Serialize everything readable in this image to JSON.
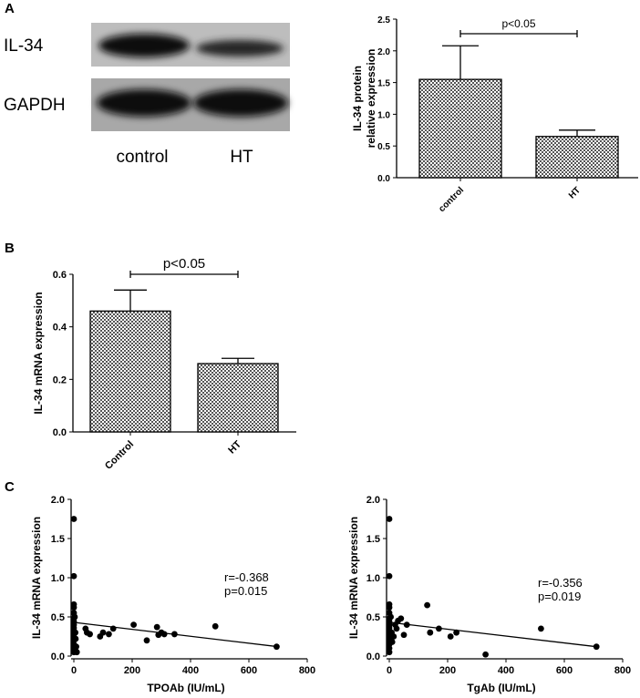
{
  "panel_labels": {
    "a": "A",
    "b": "B",
    "c": "C"
  },
  "blot": {
    "rows": [
      "IL-34",
      "GAPDH"
    ],
    "columns": [
      "control",
      "HT"
    ],
    "band_intensity": {
      "IL-34": [
        0.95,
        0.7
      ],
      "GAPDH": [
        1.0,
        1.0
      ]
    }
  },
  "chart_data": [
    {
      "id": "A",
      "type": "bar",
      "categories": [
        "control",
        "HT"
      ],
      "values": [
        1.55,
        0.65
      ],
      "error": [
        0.53,
        0.1
      ],
      "ylabel": [
        "IL-34 protein",
        "relative expression"
      ],
      "ylim": [
        0,
        2.5
      ],
      "yticks": [
        "0.0",
        "0.5",
        "1.0",
        "1.5",
        "2.0",
        "2.5"
      ],
      "significance": "p<0.05",
      "pattern": "checkered"
    },
    {
      "id": "B",
      "type": "bar",
      "categories": [
        "Control",
        "HT"
      ],
      "values": [
        0.46,
        0.26
      ],
      "error": [
        0.08,
        0.02
      ],
      "ylabel": [
        "IL-34 mRNA expression"
      ],
      "ylim": [
        0,
        0.6
      ],
      "yticks": [
        "0.0",
        "0.2",
        "0.4",
        "0.6"
      ],
      "significance": "p<0.05",
      "pattern": "checkered"
    },
    {
      "id": "C1",
      "type": "scatter",
      "xlabel": "TPOAb (IU/mL)",
      "ylabel": "IL-34 mRNA expression",
      "xlim": [
        0,
        800
      ],
      "ylim": [
        0,
        2.0
      ],
      "xticks": [
        "0",
        "200",
        "400",
        "600",
        "800"
      ],
      "yticks": [
        "0.0",
        "0.5",
        "1.0",
        "1.5",
        "2.0"
      ],
      "annotation": [
        "r=-0.368",
        "p=0.015"
      ],
      "fit": {
        "x": [
          0,
          700
        ],
        "y": [
          0.43,
          0.12
        ]
      },
      "points": [
        [
          0,
          1.75
        ],
        [
          0,
          1.02
        ],
        [
          0,
          0.66
        ],
        [
          0,
          0.62
        ],
        [
          0,
          0.55
        ],
        [
          0,
          0.48
        ],
        [
          0,
          0.44
        ],
        [
          0,
          0.4
        ],
        [
          0,
          0.36
        ],
        [
          0,
          0.32
        ],
        [
          0,
          0.28
        ],
        [
          0,
          0.24
        ],
        [
          0,
          0.2
        ],
        [
          0,
          0.15
        ],
        [
          0,
          0.1
        ],
        [
          0,
          0.05
        ],
        [
          3,
          0.5
        ],
        [
          5,
          0.3
        ],
        [
          6,
          0.22
        ],
        [
          8,
          0.12
        ],
        [
          10,
          0.05
        ],
        [
          40,
          0.35
        ],
        [
          45,
          0.3
        ],
        [
          55,
          0.28
        ],
        [
          90,
          0.25
        ],
        [
          100,
          0.3
        ],
        [
          120,
          0.28
        ],
        [
          135,
          0.35
        ],
        [
          205,
          0.4
        ],
        [
          250,
          0.2
        ],
        [
          285,
          0.37
        ],
        [
          290,
          0.27
        ],
        [
          300,
          0.3
        ],
        [
          310,
          0.28
        ],
        [
          345,
          0.28
        ],
        [
          485,
          0.38
        ],
        [
          695,
          0.12
        ]
      ]
    },
    {
      "id": "C2",
      "type": "scatter",
      "xlabel": "TgAb (IU/mL)",
      "ylabel": "IL-34 mRNA expression",
      "xlim": [
        0,
        800
      ],
      "ylim": [
        0,
        2.0
      ],
      "xticks": [
        "0",
        "200",
        "400",
        "600",
        "800"
      ],
      "yticks": [
        "0.0",
        "0.5",
        "1.0",
        "1.5",
        "2.0"
      ],
      "annotation": [
        "r=-0.356",
        "p=0.019"
      ],
      "fit": {
        "x": [
          0,
          710
        ],
        "y": [
          0.43,
          0.12
        ]
      },
      "points": [
        [
          0,
          1.75
        ],
        [
          0,
          1.02
        ],
        [
          0,
          0.66
        ],
        [
          0,
          0.62
        ],
        [
          0,
          0.55
        ],
        [
          0,
          0.48
        ],
        [
          0,
          0.44
        ],
        [
          0,
          0.4
        ],
        [
          0,
          0.36
        ],
        [
          0,
          0.32
        ],
        [
          0,
          0.28
        ],
        [
          0,
          0.24
        ],
        [
          0,
          0.2
        ],
        [
          0,
          0.15
        ],
        [
          0,
          0.1
        ],
        [
          0,
          0.05
        ],
        [
          5,
          0.5
        ],
        [
          8,
          0.3
        ],
        [
          10,
          0.18
        ],
        [
          15,
          0.25
        ],
        [
          20,
          0.4
        ],
        [
          25,
          0.35
        ],
        [
          30,
          0.45
        ],
        [
          40,
          0.48
        ],
        [
          50,
          0.27
        ],
        [
          60,
          0.4
        ],
        [
          130,
          0.65
        ],
        [
          140,
          0.3
        ],
        [
          170,
          0.35
        ],
        [
          210,
          0.25
        ],
        [
          230,
          0.3
        ],
        [
          330,
          0.02
        ],
        [
          520,
          0.35
        ],
        [
          710,
          0.12
        ]
      ]
    }
  ]
}
